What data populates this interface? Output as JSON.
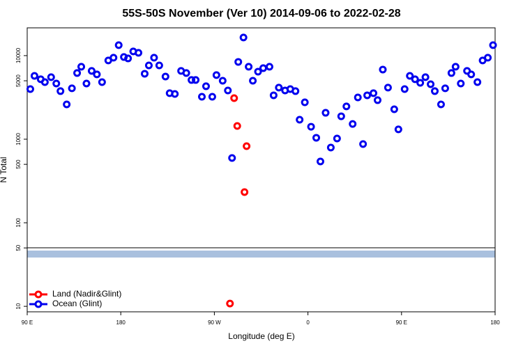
{
  "chart_data": {
    "type": "scatter",
    "title": "55S-50S November (Ver 10)   2014-09-06 to 2022-02-28",
    "xlabel": "Longitude (deg E)",
    "ylabel": "N Total",
    "xlim": [
      90,
      540
    ],
    "xticks": [
      {
        "value": 90,
        "label": "90 E"
      },
      {
        "value": 180,
        "label": "180"
      },
      {
        "value": 270,
        "label": "90 W"
      },
      {
        "value": 360,
        "label": "0"
      },
      {
        "value": 450,
        "label": "90 E"
      },
      {
        "value": 540,
        "label": "180"
      }
    ],
    "ylim": [
      8.6,
      21500
    ],
    "yscale": "log",
    "yticks": [
      10,
      50,
      100,
      500,
      1000,
      5000,
      10000
    ],
    "legend": "lower left",
    "series": [
      {
        "name": "Land (Nadir&Glint)",
        "color": "#ff0000",
        "x": [
          289,
          292,
          301,
          299,
          285
        ],
        "values": [
          3100,
          1440,
          825,
          233,
          10.8
        ]
      },
      {
        "name": "Ocean (Glint)",
        "color": "#0000ee",
        "x": [
          93,
          97,
          103,
          107,
          113,
          118,
          122,
          128,
          133,
          138,
          142,
          147,
          152,
          157,
          162,
          168,
          173,
          178,
          183,
          187,
          192,
          197,
          203,
          207,
          212,
          217,
          223,
          227,
          232,
          238,
          243,
          248,
          252,
          258,
          262,
          268,
          272,
          278,
          283,
          287,
          293,
          298,
          303,
          307,
          312,
          317,
          323,
          327,
          332,
          338,
          343,
          348,
          352,
          357,
          363,
          368,
          372,
          377,
          382,
          388,
          392,
          397,
          403,
          408,
          413,
          417,
          423,
          427,
          432,
          437,
          443,
          447,
          453,
          458,
          463,
          468,
          473,
          478,
          482,
          488,
          492,
          498,
          502,
          507,
          513,
          517,
          523,
          528,
          533,
          538
        ],
        "values": [
          3980,
          5730,
          5210,
          4820,
          5520,
          4640,
          3760,
          2610,
          4060,
          6190,
          7360,
          4640,
          6560,
          5960,
          4820,
          8750,
          9440,
          13340,
          9620,
          9260,
          11220,
          10800,
          6070,
          7640,
          9440,
          7640,
          5620,
          3550,
          3480,
          6560,
          6190,
          5110,
          5110,
          3220,
          4300,
          3220,
          5850,
          5010,
          3830,
          596,
          8410,
          16480,
          7360,
          5010,
          6430,
          7080,
          7360,
          3350,
          4140,
          3830,
          3980,
          3760,
          1710,
          2760,
          1410,
          1040,
          541,
          2070,
          794,
          1020,
          1880,
          2470,
          1520,
          3160,
          875,
          3350,
          3550,
          2930,
          6810,
          4140,
          2280,
          1310,
          3980,
          5730,
          5210,
          4730,
          5520,
          4550,
          3760,
          2610,
          4060,
          6190,
          7360,
          4640,
          6560,
          5960,
          4820,
          8750,
          9440,
          13340
        ]
      }
    ]
  }
}
